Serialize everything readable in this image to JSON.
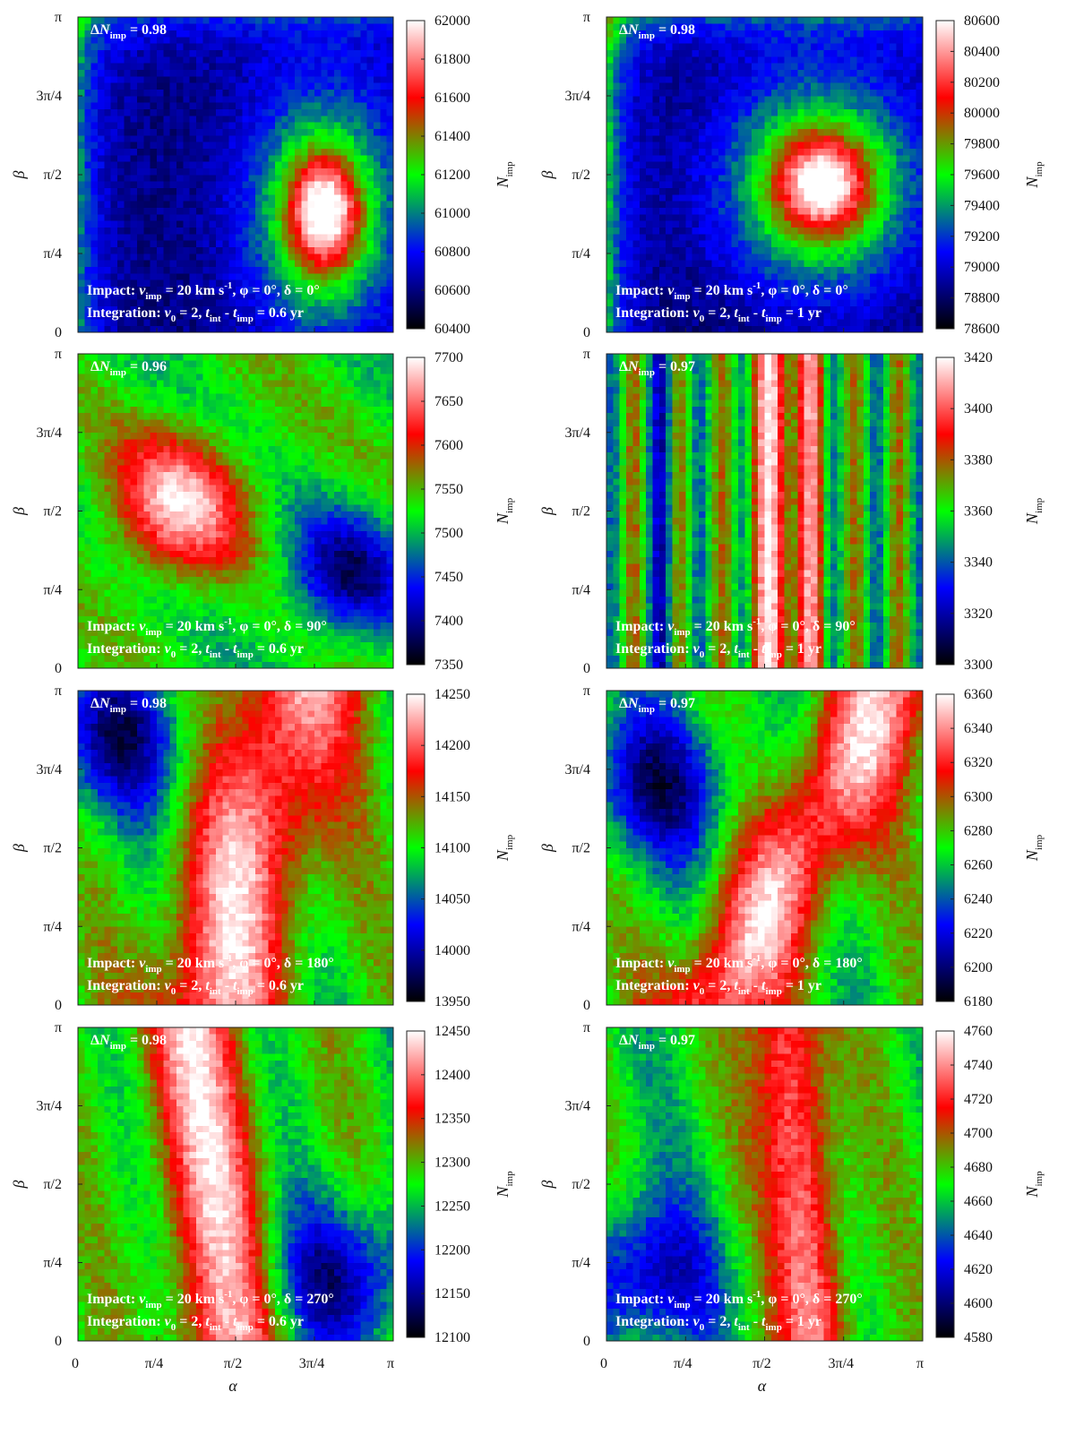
{
  "figure": {
    "x_label": "α",
    "y_label": "β",
    "colorbar_label": "N",
    "colorbar_label_sub": "imp"
  },
  "chart_data": [
    {
      "type": "heatmap",
      "row": 0,
      "col": 0,
      "xlabel": "α",
      "ylabel": "β",
      "colorbar_label": "N_imp",
      "xlim": [
        0,
        3.1416
      ],
      "ylim": [
        0,
        3.1416
      ],
      "x_ticks": [
        "0",
        "π/4",
        "π/2",
        "3π/4",
        "π"
      ],
      "y_ticks": [
        "0",
        "π/4",
        "π/2",
        "3π/4",
        "π"
      ],
      "show_x_tick_labels": false,
      "zlim": [
        60400,
        62000
      ],
      "colorbar_ticks": [
        "60400",
        "60600",
        "60800",
        "61000",
        "61200",
        "61400",
        "61600",
        "61800",
        "62000"
      ],
      "pattern": "blob",
      "pattern_params": {
        "cx": 0.78,
        "cy": 0.38,
        "sx": 0.1,
        "sy": 0.16,
        "amp": 1.0,
        "base": 0.12,
        "ring": 0.45,
        "edge": 0.35
      },
      "annotation_top": "ΔN_imp = 0.98",
      "annotation_line1": "Impact: v_imp = 20 km s^-1, φ = 0°, δ = 0°",
      "annotation_line2": "Integration: ν_0 = 2, t_int - t_imp = 0.6 yr",
      "delta_value": "0.98",
      "delta_deg": "0°",
      "duration": "0.6 yr"
    },
    {
      "type": "heatmap",
      "row": 0,
      "col": 1,
      "xlabel": "α",
      "ylabel": "β",
      "colorbar_label": "N_imp",
      "xlim": [
        0,
        3.1416
      ],
      "ylim": [
        0,
        3.1416
      ],
      "x_ticks": [
        "0",
        "π/4",
        "π/2",
        "3π/4",
        "π"
      ],
      "y_ticks": [
        "0",
        "π/4",
        "π/2",
        "3π/4",
        "π"
      ],
      "show_x_tick_labels": false,
      "zlim": [
        78600,
        80600
      ],
      "colorbar_ticks": [
        "78600",
        "78800",
        "79000",
        "79200",
        "79400",
        "79600",
        "79800",
        "80000",
        "80200",
        "80400",
        "80600"
      ],
      "pattern": "blob",
      "pattern_params": {
        "cx": 0.68,
        "cy": 0.47,
        "sx": 0.13,
        "sy": 0.14,
        "amp": 1.0,
        "base": 0.1,
        "ring": 0.5,
        "edge": 0.45
      },
      "annotation_top": "ΔN_imp = 0.98",
      "annotation_line1": "Impact: v_imp = 20 km s^-1, φ = 0°, δ = 0°",
      "annotation_line2": "Integration: ν_0 = 2, t_int - t_imp = 1 yr",
      "delta_value": "0.98",
      "delta_deg": "0°",
      "duration": "1 yr"
    },
    {
      "type": "heatmap",
      "row": 1,
      "col": 0,
      "xlabel": "α",
      "ylabel": "β",
      "colorbar_label": "N_imp",
      "xlim": [
        0,
        3.1416
      ],
      "ylim": [
        0,
        3.1416
      ],
      "x_ticks": [
        "0",
        "π/4",
        "π/2",
        "3π/4",
        "π"
      ],
      "y_ticks": [
        "0",
        "π/4",
        "π/2",
        "3π/4",
        "π"
      ],
      "show_x_tick_labels": false,
      "zlim": [
        7350,
        7700
      ],
      "colorbar_ticks": [
        "7350",
        "7400",
        "7450",
        "7500",
        "7550",
        "7600",
        "7650",
        "7700"
      ],
      "pattern": "diag",
      "pattern_params": {
        "cx": 0.32,
        "cy": 0.52,
        "amp": 0.95,
        "low_x": 0.85,
        "low_y": 0.3
      },
      "annotation_top": "ΔN_imp = 0.96",
      "annotation_line1": "Impact: v_imp = 20 km s^-1, φ = 0°, δ = 90°",
      "annotation_line2": "Integration: ν_0 = 2, t_int - t_imp = 0.6 yr",
      "delta_value": "0.96",
      "delta_deg": "90°",
      "duration": "0.6 yr"
    },
    {
      "type": "heatmap",
      "row": 1,
      "col": 1,
      "xlabel": "α",
      "ylabel": "β",
      "colorbar_label": "N_imp",
      "xlim": [
        0,
        3.1416
      ],
      "ylim": [
        0,
        3.1416
      ],
      "x_ticks": [
        "0",
        "π/4",
        "π/2",
        "3π/4",
        "π"
      ],
      "y_ticks": [
        "0",
        "π/4",
        "π/2",
        "3π/4",
        "π"
      ],
      "show_x_tick_labels": false,
      "zlim": [
        3300,
        3420
      ],
      "colorbar_ticks": [
        "3300",
        "3320",
        "3340",
        "3360",
        "3380",
        "3400",
        "3420"
      ],
      "pattern": "stripes",
      "pattern_params": {
        "cx": 0.53,
        "width": 0.08,
        "cx2": 0.65,
        "amp": 0.9
      },
      "annotation_top": "ΔN_imp = 0.97",
      "annotation_line1": "Impact: v_imp = 20 km s^-1, φ = 0°, δ = 90°",
      "annotation_line2": "Integration: ν_0 = 2, t_int - t_imp = 1 yr",
      "delta_value": "0.97",
      "delta_deg": "90°",
      "duration": "1 yr"
    },
    {
      "type": "heatmap",
      "row": 2,
      "col": 0,
      "xlabel": "α",
      "ylabel": "β",
      "colorbar_label": "N_imp",
      "xlim": [
        0,
        3.1416
      ],
      "ylim": [
        0,
        3.1416
      ],
      "x_ticks": [
        "0",
        "π/4",
        "π/2",
        "3π/4",
        "π"
      ],
      "y_ticks": [
        "0",
        "π/4",
        "π/2",
        "3π/4",
        "π"
      ],
      "show_x_tick_labels": false,
      "zlim": [
        13950,
        14250
      ],
      "colorbar_ticks": [
        "13950",
        "14000",
        "14050",
        "14100",
        "14150",
        "14200",
        "14250"
      ],
      "pattern": "band",
      "pattern_params": {
        "cx": 0.55,
        "tilt": 0.25,
        "width": 0.16,
        "amp": 1.0,
        "low_cx": 0.12,
        "low_cy": 0.85
      },
      "annotation_top": "ΔN_imp = 0.98",
      "annotation_line1": "Impact: v_imp = 20 km s^-1, φ = 0°, δ = 180°",
      "annotation_line2": "Integration: ν_0 = 2, t_int - t_imp = 0.6 yr",
      "delta_value": "0.98",
      "delta_deg": "180°",
      "duration": "0.6 yr"
    },
    {
      "type": "heatmap",
      "row": 2,
      "col": 1,
      "xlabel": "α",
      "ylabel": "β",
      "colorbar_label": "N_imp",
      "xlim": [
        0,
        3.1416
      ],
      "ylim": [
        0,
        3.1416
      ],
      "x_ticks": [
        "0",
        "π/4",
        "π/2",
        "3π/4",
        "π"
      ],
      "y_ticks": [
        "0",
        "π/4",
        "π/2",
        "3π/4",
        "π"
      ],
      "show_x_tick_labels": false,
      "zlim": [
        6180,
        6360
      ],
      "colorbar_ticks": [
        "6180",
        "6200",
        "6220",
        "6240",
        "6260",
        "6280",
        "6300",
        "6320",
        "6340",
        "6360"
      ],
      "pattern": "band",
      "pattern_params": {
        "cx": 0.62,
        "tilt": 0.55,
        "width": 0.14,
        "amp": 0.95,
        "low_cx": 0.15,
        "low_cy": 0.7
      },
      "annotation_top": "ΔN_imp = 0.97",
      "annotation_line1": "Impact: v_imp = 20 km s^-1, φ = 0°, δ = 180°",
      "annotation_line2": "Integration: ν_0 = 2, t_int - t_imp = 1 yr",
      "delta_value": "0.97",
      "delta_deg": "180°",
      "duration": "1 yr"
    },
    {
      "type": "heatmap",
      "row": 3,
      "col": 0,
      "xlabel": "α",
      "ylabel": "β",
      "colorbar_label": "N_imp",
      "xlim": [
        0,
        3.1416
      ],
      "ylim": [
        0,
        3.1416
      ],
      "x_ticks": [
        "0",
        "π/4",
        "π/2",
        "3π/4",
        "π"
      ],
      "y_ticks": [
        "0",
        "π/4",
        "π/2",
        "3π/4",
        "π"
      ],
      "show_x_tick_labels": true,
      "zlim": [
        12100,
        12450
      ],
      "colorbar_ticks": [
        "12100",
        "12150",
        "12200",
        "12250",
        "12300",
        "12350",
        "12400",
        "12450"
      ],
      "pattern": "band",
      "pattern_params": {
        "cx": 0.42,
        "tilt": -0.12,
        "width": 0.12,
        "amp": 0.85,
        "low_cx": 0.85,
        "low_cy": 0.2
      },
      "annotation_top": "ΔN_imp = 0.98",
      "annotation_line1": "Impact: v_imp = 20 km s^-1, φ = 0°, δ = 270°",
      "annotation_line2": "Integration: ν_0 = 2, t_int - t_imp = 0.6 yr",
      "delta_value": "0.98",
      "delta_deg": "270°",
      "duration": "0.6 yr"
    },
    {
      "type": "heatmap",
      "row": 3,
      "col": 1,
      "xlabel": "α",
      "ylabel": "β",
      "colorbar_label": "N_imp",
      "xlim": [
        0,
        3.1416
      ],
      "ylim": [
        0,
        3.1416
      ],
      "x_ticks": [
        "0",
        "π/4",
        "π/2",
        "3π/4",
        "π"
      ],
      "y_ticks": [
        "0",
        "π/4",
        "π/2",
        "3π/4",
        "π"
      ],
      "show_x_tick_labels": true,
      "zlim": [
        4580,
        4760
      ],
      "colorbar_ticks": [
        "4580",
        "4600",
        "4620",
        "4640",
        "4660",
        "4680",
        "4700",
        "4720",
        "4740",
        "4760"
      ],
      "pattern": "band",
      "pattern_params": {
        "cx": 0.62,
        "tilt": -0.1,
        "width": 0.08,
        "amp": 0.95,
        "low_cx": 0.1,
        "low_cy": 0.2
      },
      "annotation_top": "ΔN_imp = 0.97",
      "annotation_line1": "Impact: v_imp = 20 km s^-1, φ = 0°, δ = 270°",
      "annotation_line2": "Integration: ν_0 = 2, t_int - t_imp = 1 yr",
      "delta_value": "0.97",
      "delta_deg": "270°",
      "duration": "1 yr"
    }
  ],
  "colormap": [
    "#000000",
    "#0000ff",
    "#00ff00",
    "#ff0000",
    "#ffffff"
  ]
}
